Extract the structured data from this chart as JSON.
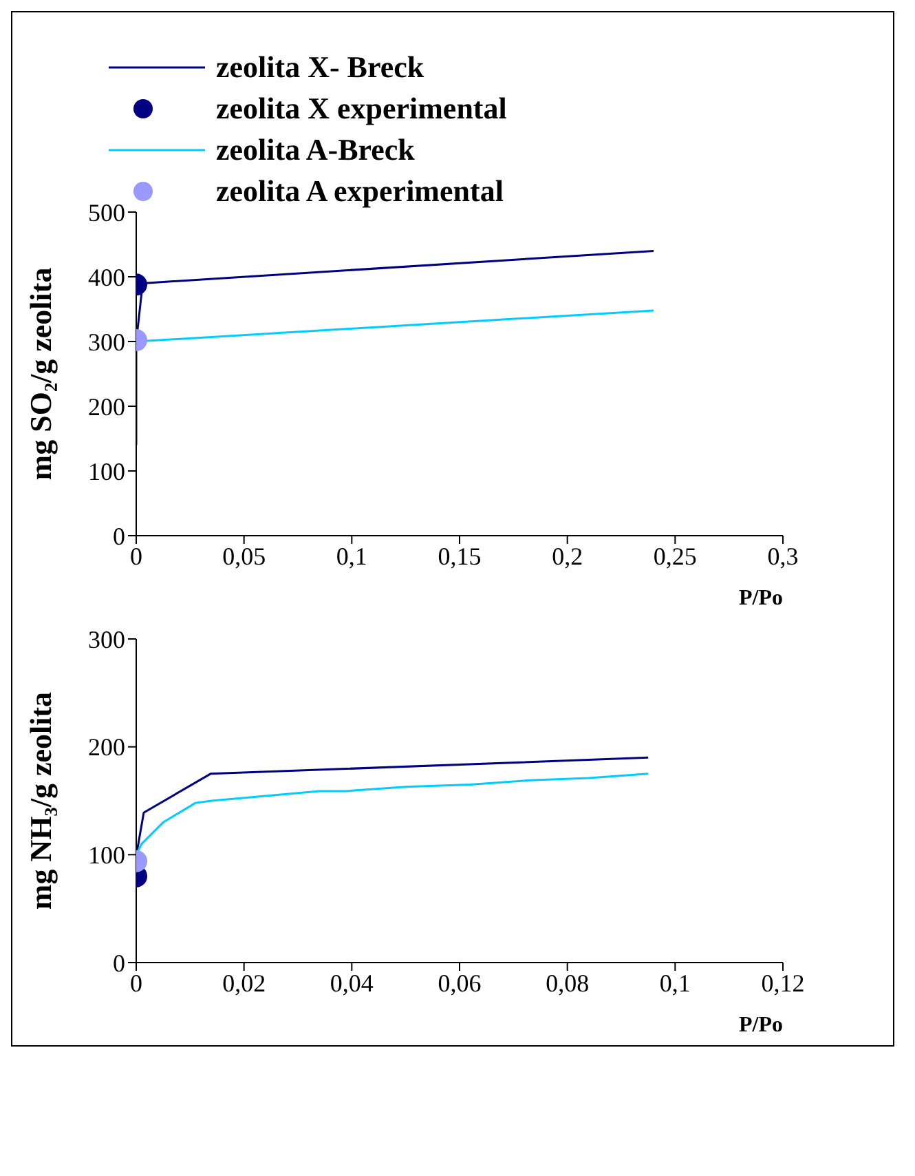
{
  "chart_data": [
    {
      "type": "line",
      "xlabel": "P/Po",
      "ylabel": "mg SO₂/g zeolita",
      "xlim": [
        0,
        0.3
      ],
      "xticks": [
        {
          "value": 0,
          "label": "0"
        },
        {
          "value": 0.05,
          "label": "0,05"
        },
        {
          "value": 0.1,
          "label": "0,1"
        },
        {
          "value": 0.15,
          "label": "0,15"
        },
        {
          "value": 0.2,
          "label": "0,2"
        },
        {
          "value": 0.25,
          "label": "0,25"
        },
        {
          "value": 0.3,
          "label": "0,3"
        }
      ],
      "ylim": [
        0,
        500
      ],
      "yticks": [
        0,
        100,
        200,
        300,
        400,
        500
      ],
      "grid": false,
      "legend": "top",
      "series": [
        {
          "name": "zeolita X- Breck",
          "marker": "none",
          "color": "#000080",
          "x": [
            0,
            0,
            0.003,
            0.24
          ],
          "values": [
            140,
            300,
            390,
            440
          ]
        },
        {
          "name": "zeolita X experimental",
          "type": "scatter",
          "marker": "circle",
          "color": "#000080",
          "x": [
            0
          ],
          "values": [
            388
          ]
        },
        {
          "name": "zeolita A-Breck",
          "marker": "none",
          "color": "#00ccff",
          "x": [
            0,
            0.24
          ],
          "values": [
            300,
            348
          ]
        },
        {
          "name": "zeolita A experimental",
          "type": "scatter",
          "marker": "circle",
          "color": "#9999ff",
          "x": [
            0
          ],
          "values": [
            302
          ]
        }
      ]
    },
    {
      "type": "line",
      "xlabel": "P/Po",
      "ylabel": "mg NH₃/g zeolita",
      "xlim": [
        0,
        0.12
      ],
      "xticks": [
        {
          "value": 0,
          "label": "0"
        },
        {
          "value": 0.02,
          "label": "0,02"
        },
        {
          "value": 0.04,
          "label": "0,04"
        },
        {
          "value": 0.06,
          "label": "0,06"
        },
        {
          "value": 0.08,
          "label": "0,08"
        },
        {
          "value": 0.1,
          "label": "0,1"
        },
        {
          "value": 0.12,
          "label": "0,12"
        }
      ],
      "ylim": [
        0,
        300
      ],
      "yticks": [
        0,
        100,
        200,
        300
      ],
      "grid": false,
      "legend": false,
      "series": [
        {
          "marker": "none",
          "color": "#000080",
          "x": [
            0,
            0.0014,
            0.0138,
            0.095
          ],
          "values": [
            99,
            139,
            175,
            190
          ]
        },
        {
          "type": "scatter",
          "marker": "circle",
          "color": "#000080",
          "x": [
            0
          ],
          "values": [
            80
          ]
        },
        {
          "marker": "none",
          "color": "#00ccff",
          "x": [
            0,
            0.001,
            0.005,
            0.011,
            0.014,
            0.034,
            0.039,
            0.05,
            0.062,
            0.073,
            0.084,
            0.095
          ],
          "values": [
            100,
            110,
            130,
            148,
            150,
            159,
            159,
            163,
            165,
            169,
            171,
            175
          ]
        },
        {
          "type": "scatter",
          "marker": "circle",
          "color": "#9999ff",
          "x": [
            0
          ],
          "values": [
            94
          ]
        }
      ]
    }
  ]
}
